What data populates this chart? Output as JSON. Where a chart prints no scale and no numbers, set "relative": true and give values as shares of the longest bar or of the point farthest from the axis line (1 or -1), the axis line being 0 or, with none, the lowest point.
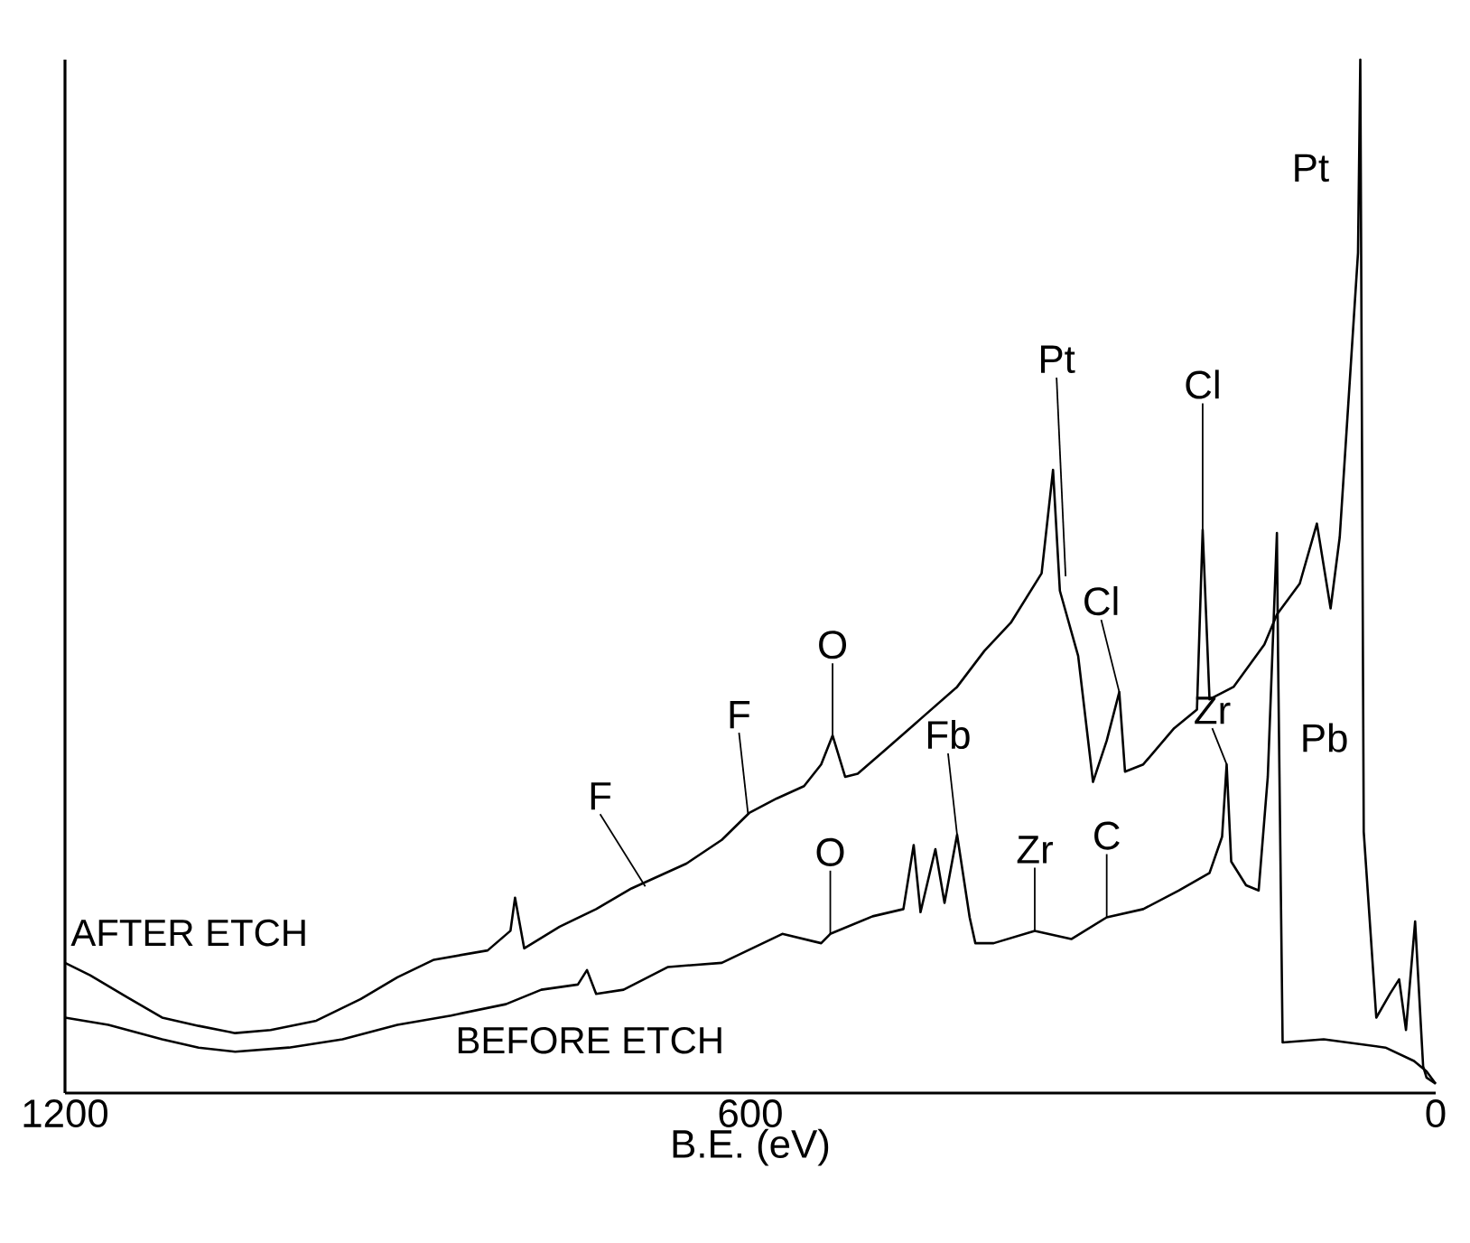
{
  "chart_data": {
    "type": "line",
    "xlabel": "B.E. (eV)",
    "relative": true,
    "xlim": [
      1200,
      0
    ],
    "xticks": [
      1200,
      600,
      0
    ],
    "grid": false,
    "marker": "none",
    "line_style": "solid",
    "series": [
      {
        "name": "AFTER ETCH",
        "color": "#000000",
        "x": [
          1200,
          1178,
          1146,
          1115,
          1083,
          1051,
          1020,
          980,
          941,
          909,
          877,
          830,
          810,
          806,
          798,
          767,
          735,
          704,
          656,
          625,
          601,
          577,
          553,
          538,
          528,
          517,
          506,
          482,
          451,
          419,
          395,
          372,
          345,
          335,
          329,
          313,
          300,
          288,
          277,
          272,
          256,
          229,
          209,
          204,
          198,
          177,
          150,
          139,
          119,
          104,
          92,
          84,
          68,
          66,
          63,
          52,
          40,
          32,
          26,
          18,
          11,
          8,
          0
        ],
        "values": [
          0.126,
          0.114,
          0.093,
          0.073,
          0.065,
          0.058,
          0.061,
          0.07,
          0.091,
          0.112,
          0.129,
          0.138,
          0.157,
          0.189,
          0.14,
          0.161,
          0.178,
          0.198,
          0.222,
          0.245,
          0.271,
          0.285,
          0.297,
          0.318,
          0.346,
          0.306,
          0.309,
          0.332,
          0.362,
          0.393,
          0.428,
          0.455,
          0.503,
          0.603,
          0.486,
          0.423,
          0.301,
          0.341,
          0.388,
          0.311,
          0.318,
          0.353,
          0.371,
          0.545,
          0.381,
          0.393,
          0.434,
          0.463,
          0.493,
          0.551,
          0.469,
          0.538,
          0.813,
          1.0,
          0.253,
          0.073,
          0.096,
          0.11,
          0.061,
          0.166,
          0.026,
          0.015,
          0.009
        ]
      },
      {
        "name": "BEFORE ETCH",
        "color": "#000000",
        "x": [
          1200,
          1162,
          1115,
          1083,
          1051,
          1004,
          957,
          909,
          862,
          814,
          783,
          751,
          743,
          735,
          711,
          672,
          625,
          572,
          538,
          530,
          493,
          466,
          457,
          451,
          438,
          430,
          419,
          408,
          403,
          387,
          351,
          319,
          288,
          256,
          225,
          198,
          187,
          183,
          179,
          166,
          155,
          147,
          139,
          138,
          134,
          98,
          44,
          19,
          8,
          0
        ],
        "values": [
          0.073,
          0.066,
          0.052,
          0.044,
          0.04,
          0.044,
          0.052,
          0.066,
          0.075,
          0.086,
          0.1,
          0.105,
          0.119,
          0.096,
          0.1,
          0.122,
          0.126,
          0.154,
          0.145,
          0.154,
          0.171,
          0.178,
          0.24,
          0.175,
          0.236,
          0.184,
          0.25,
          0.17,
          0.145,
          0.145,
          0.157,
          0.149,
          0.17,
          0.178,
          0.196,
          0.213,
          0.248,
          0.318,
          0.224,
          0.201,
          0.196,
          0.306,
          0.542,
          0.423,
          0.049,
          0.052,
          0.044,
          0.031,
          0.021,
          0.009
        ]
      }
    ],
    "annotations": [
      {
        "text": "Pt",
        "x": 66,
        "y": 1.0
      },
      {
        "text": "Pt",
        "x": 324,
        "y": 0.5
      },
      {
        "text": "Cl",
        "x": 204,
        "y": 0.545
      },
      {
        "text": "Cl",
        "x": 277,
        "y": 0.388
      },
      {
        "text": "Zr",
        "x": 183,
        "y": 0.318
      },
      {
        "text": "Pb",
        "x": 138,
        "y": 0.423
      },
      {
        "text": "F",
        "x": 692,
        "y": 0.2
      },
      {
        "text": "F",
        "x": 602,
        "y": 0.27
      },
      {
        "text": "O",
        "x": 528,
        "y": 0.346
      },
      {
        "text": "O",
        "x": 530,
        "y": 0.154
      },
      {
        "text": "Fb",
        "x": 419,
        "y": 0.25
      },
      {
        "text": "Zr",
        "x": 351,
        "y": 0.157
      },
      {
        "text": "C",
        "x": 288,
        "y": 0.17
      }
    ]
  }
}
